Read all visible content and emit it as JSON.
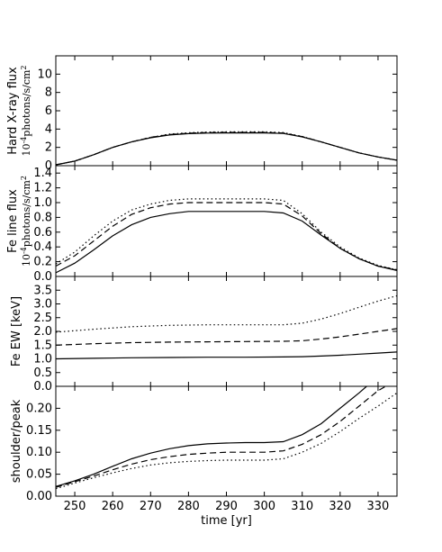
{
  "chart_data": {
    "type": "line",
    "xlabel": "time [yr]",
    "xlim": [
      245,
      335
    ],
    "xticks": [
      250,
      260,
      270,
      280,
      290,
      300,
      310,
      320,
      330
    ],
    "panels": [
      {
        "name": "hard-xray-flux",
        "ylabel": "Hard X-ray flux",
        "yunit": "10^{-4} photons/s/cm^2",
        "ylim": [
          0,
          12
        ],
        "yticks": [
          0,
          2,
          4,
          6,
          8,
          10
        ],
        "series": [
          {
            "style": "dotted",
            "x": [
              245,
              250,
              255,
              260,
              265,
              270,
              275,
              280,
              285,
              290,
              295,
              300,
              305,
              310,
              315,
              320,
              325,
              330,
              335
            ],
            "y": [
              0.1,
              0.5,
              1.2,
              2.0,
              2.6,
              3.1,
              3.45,
              3.6,
              3.68,
              3.7,
              3.7,
              3.7,
              3.62,
              3.2,
              2.6,
              2.0,
              1.4,
              0.95,
              0.6
            ]
          },
          {
            "style": "dashed",
            "x": [
              245,
              250,
              255,
              260,
              265,
              270,
              275,
              280,
              285,
              290,
              295,
              300,
              305,
              310,
              315,
              320,
              325,
              330,
              335
            ],
            "y": [
              0.1,
              0.5,
              1.2,
              2.0,
              2.6,
              3.1,
              3.4,
              3.55,
              3.62,
              3.64,
              3.64,
              3.64,
              3.57,
              3.18,
              2.6,
              2.0,
              1.4,
              0.95,
              0.6
            ]
          },
          {
            "style": "solid",
            "x": [
              245,
              250,
              255,
              260,
              265,
              270,
              275,
              280,
              285,
              290,
              295,
              300,
              305,
              310,
              315,
              320,
              325,
              330,
              335
            ],
            "y": [
              0.1,
              0.5,
              1.2,
              2.0,
              2.6,
              3.05,
              3.35,
              3.5,
              3.56,
              3.58,
              3.58,
              3.58,
              3.52,
              3.15,
              2.6,
              2.0,
              1.4,
              0.95,
              0.6
            ]
          }
        ]
      },
      {
        "name": "fe-line-flux",
        "ylabel": "Fe line flux",
        "yunit": "10^{-4} photons/s/cm^2",
        "ylim": [
          0,
          1.5
        ],
        "yticks": [
          0.0,
          0.2,
          0.4,
          0.6,
          0.8,
          1.0,
          1.2,
          1.4
        ],
        "ytick_labels": [
          "0.0",
          "0.2",
          "0.4",
          "0.6",
          "0.8",
          "1.0",
          "1.2",
          "1.4"
        ],
        "series": [
          {
            "style": "dotted",
            "x": [
              245,
              250,
              255,
              260,
              265,
              270,
              275,
              280,
              285,
              290,
              295,
              300,
              305,
              310,
              315,
              320,
              325,
              330,
              335
            ],
            "y": [
              0.17,
              0.33,
              0.55,
              0.75,
              0.9,
              0.98,
              1.03,
              1.05,
              1.05,
              1.05,
              1.05,
              1.05,
              1.03,
              0.85,
              0.6,
              0.4,
              0.25,
              0.15,
              0.09
            ]
          },
          {
            "style": "dashed",
            "x": [
              245,
              250,
              255,
              260,
              265,
              270,
              275,
              280,
              285,
              290,
              295,
              300,
              305,
              310,
              315,
              320,
              325,
              330,
              335
            ],
            "y": [
              0.14,
              0.28,
              0.48,
              0.68,
              0.84,
              0.93,
              0.98,
              1.0,
              1.0,
              1.0,
              1.0,
              1.0,
              0.98,
              0.82,
              0.58,
              0.38,
              0.24,
              0.14,
              0.09
            ]
          },
          {
            "style": "solid",
            "x": [
              245,
              250,
              255,
              260,
              265,
              270,
              275,
              280,
              285,
              290,
              295,
              300,
              305,
              310,
              315,
              320,
              325,
              330,
              335
            ],
            "y": [
              0.05,
              0.18,
              0.36,
              0.55,
              0.7,
              0.8,
              0.85,
              0.88,
              0.88,
              0.88,
              0.88,
              0.88,
              0.86,
              0.75,
              0.56,
              0.38,
              0.24,
              0.14,
              0.08
            ]
          }
        ]
      },
      {
        "name": "fe-ew",
        "ylabel": "Fe EW [keV]",
        "yunit": "",
        "ylim": [
          0,
          4
        ],
        "yticks": [
          0.0,
          0.5,
          1.0,
          1.5,
          2.0,
          2.5,
          3.0,
          3.5
        ],
        "ytick_labels": [
          "0.0",
          "0.5",
          "1.0",
          "1.5",
          "2.0",
          "2.5",
          "3.0",
          "3.5"
        ],
        "series": [
          {
            "style": "dotted",
            "x": [
              245,
              255,
              265,
              275,
              285,
              295,
              305,
              310,
              315,
              320,
              325,
              330,
              335
            ],
            "y": [
              1.97,
              2.08,
              2.17,
              2.22,
              2.24,
              2.24,
              2.24,
              2.3,
              2.45,
              2.65,
              2.88,
              3.1,
              3.3
            ]
          },
          {
            "style": "dashed",
            "x": [
              245,
              255,
              265,
              275,
              285,
              295,
              305,
              310,
              315,
              320,
              325,
              330,
              335
            ],
            "y": [
              1.5,
              1.55,
              1.59,
              1.61,
              1.62,
              1.63,
              1.64,
              1.66,
              1.72,
              1.8,
              1.9,
              2.0,
              2.1
            ]
          },
          {
            "style": "solid",
            "x": [
              245,
              255,
              265,
              275,
              285,
              295,
              305,
              310,
              315,
              320,
              325,
              330,
              335
            ],
            "y": [
              1.0,
              1.02,
              1.04,
              1.05,
              1.06,
              1.06,
              1.07,
              1.08,
              1.1,
              1.13,
              1.17,
              1.21,
              1.25
            ]
          }
        ]
      },
      {
        "name": "shoulder-peak",
        "ylabel": "shoulder/peak",
        "yunit": "",
        "ylim": [
          0,
          0.25
        ],
        "yticks": [
          0.0,
          0.05,
          0.1,
          0.15,
          0.2
        ],
        "ytick_labels": [
          "0.00",
          "0.05",
          "0.10",
          "0.15",
          "0.20"
        ],
        "series": [
          {
            "style": "solid",
            "x": [
              245,
              250,
              255,
              260,
              265,
              270,
              275,
              280,
              285,
              290,
              295,
              300,
              305,
              310,
              315,
              320,
              325,
              327
            ],
            "y": [
              0.022,
              0.035,
              0.05,
              0.068,
              0.085,
              0.098,
              0.108,
              0.115,
              0.119,
              0.121,
              0.122,
              0.122,
              0.124,
              0.14,
              0.165,
              0.2,
              0.235,
              0.25
            ]
          },
          {
            "style": "dashed",
            "x": [
              245,
              250,
              255,
              260,
              265,
              270,
              275,
              280,
              285,
              290,
              295,
              300,
              305,
              310,
              315,
              320,
              325,
              330,
              332
            ],
            "y": [
              0.02,
              0.033,
              0.046,
              0.06,
              0.073,
              0.083,
              0.09,
              0.095,
              0.098,
              0.1,
              0.1,
              0.1,
              0.103,
              0.118,
              0.14,
              0.17,
              0.205,
              0.24,
              0.25
            ]
          },
          {
            "style": "dotted",
            "x": [
              245,
              250,
              255,
              260,
              265,
              270,
              275,
              280,
              285,
              290,
              295,
              300,
              305,
              310,
              315,
              320,
              325,
              330,
              335
            ],
            "y": [
              0.017,
              0.03,
              0.042,
              0.053,
              0.063,
              0.071,
              0.076,
              0.079,
              0.081,
              0.082,
              0.082,
              0.082,
              0.085,
              0.1,
              0.12,
              0.147,
              0.177,
              0.205,
              0.235
            ]
          }
        ]
      }
    ]
  }
}
